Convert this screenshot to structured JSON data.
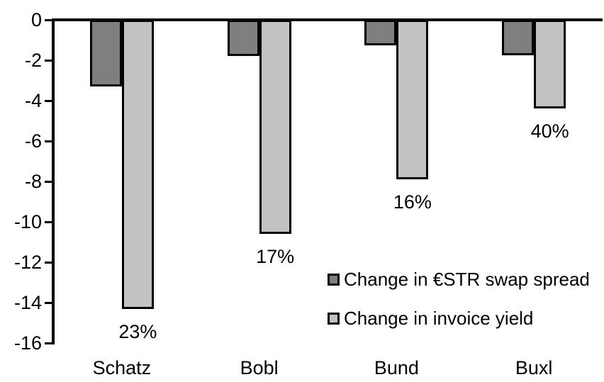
{
  "chart_data": {
    "type": "bar",
    "orientation": "vertical-negative",
    "categories": [
      "Schatz",
      "Bobl",
      "Bund",
      "Buxl"
    ],
    "series": [
      {
        "name": "Change in €STR swap spread",
        "color": "#7f7f7f",
        "values": [
          -3.3,
          -1.8,
          -1.25,
          -1.75
        ]
      },
      {
        "name": "Change in invoice yield",
        "color": "#c2c2c2",
        "values": [
          -14.3,
          -10.6,
          -7.9,
          -4.4
        ],
        "data_labels": [
          "23%",
          "17%",
          "16%",
          "40%"
        ]
      }
    ],
    "title": "",
    "xlabel": "",
    "ylabel": "",
    "ylim": [
      -16,
      0
    ],
    "yticks": [
      0,
      -2,
      -4,
      -6,
      -8,
      -10,
      -12,
      -14,
      -16
    ],
    "ytick_labels": [
      "0",
      "-2",
      "-4",
      "-6",
      "-8",
      "-10",
      "-12",
      "-14",
      "-16"
    ],
    "grid": false,
    "legend_position": "inside-center-right",
    "axis_color": "#000000",
    "bar_border_color": "#000000",
    "background_color": "#ffffff"
  }
}
